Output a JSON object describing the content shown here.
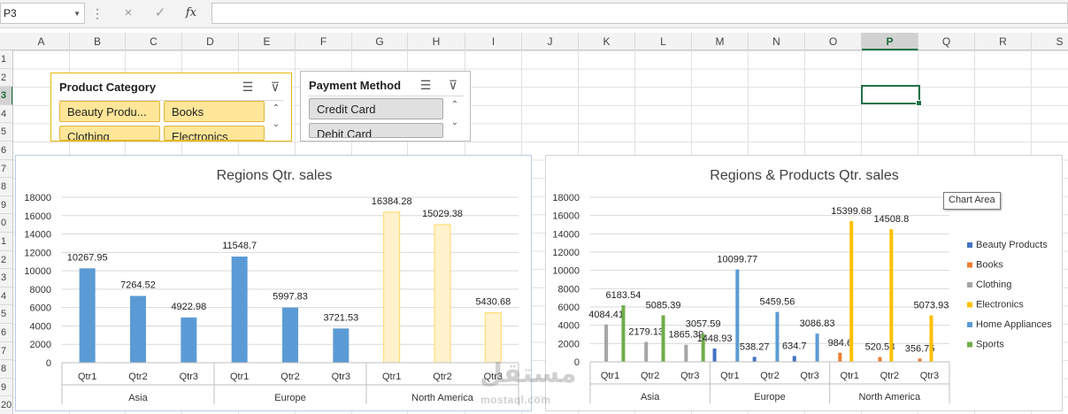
{
  "formula_bar": {
    "name_box": "P3",
    "cancel_icon": "×",
    "enter_icon": "✓",
    "fx_label": "fx"
  },
  "columns": [
    "A",
    "B",
    "C",
    "D",
    "E",
    "F",
    "G",
    "H",
    "I",
    "J",
    "K",
    "L",
    "M",
    "N",
    "O",
    "P",
    "Q",
    "R",
    "S"
  ],
  "selected_column": "P",
  "rows": [
    "1",
    "2",
    "3",
    "4",
    "5",
    "6",
    "7",
    "8",
    "9",
    "0",
    "1",
    "2",
    "3",
    "4",
    "5",
    "6",
    "7",
    "8",
    "9",
    "20"
  ],
  "selected_row_index": 2,
  "slicers": {
    "product_category": {
      "title": "Product Category",
      "items": [
        "Beauty Produ...",
        "Books",
        "Clothing",
        "Electronics"
      ]
    },
    "payment_method": {
      "title": "Payment Method",
      "items": [
        "Credit Card",
        "Debit Card"
      ]
    }
  },
  "tooltip": "Chart Area",
  "watermark": {
    "arabic": "مستقل",
    "latin": "mostaql.com"
  },
  "colors": {
    "accent_green": "#217346",
    "bar_blue": "#5b9bd5",
    "bar_pale": "#fff2cc",
    "bar_pale_border": "#ffd966",
    "beauty": "#4472c4",
    "books": "#ed7d31",
    "clothing": "#a5a5a5",
    "electronics": "#ffc000",
    "home": "#5b9bd5",
    "sports": "#70ad47"
  },
  "chart_data": [
    {
      "type": "bar",
      "title": "Regions Qtr. sales",
      "ylim": [
        0,
        18000
      ],
      "yticks": [
        0,
        2000,
        4000,
        6000,
        8000,
        10000,
        12000,
        14000,
        16000,
        18000
      ],
      "groups": [
        {
          "name": "Asia",
          "categories": [
            "Qtr1",
            "Qtr2",
            "Qtr3"
          ],
          "values": [
            10267.95,
            7264.52,
            4922.98
          ],
          "style": "blue"
        },
        {
          "name": "Europe",
          "categories": [
            "Qtr1",
            "Qtr2",
            "Qtr3"
          ],
          "values": [
            11548.7,
            5997.83,
            3721.53
          ],
          "style": "blue"
        },
        {
          "name": "North America",
          "categories": [
            "Qtr1",
            "Qtr2",
            "Qtr3"
          ],
          "values": [
            16384.28,
            15029.38,
            5430.68
          ],
          "style": "pale"
        }
      ],
      "grid": true,
      "legend": "none"
    },
    {
      "type": "bar",
      "title": "Regions & Products Qtr. sales",
      "ylim": [
        0,
        18000
      ],
      "yticks": [
        0,
        2000,
        4000,
        6000,
        8000,
        10000,
        12000,
        14000,
        16000,
        18000
      ],
      "legend_position": "right",
      "series_names": [
        "Beauty Products",
        "Books",
        "Clothing",
        "Electronics",
        "Home Appliances",
        "Sports"
      ],
      "groups": [
        {
          "name": "Asia",
          "categories": [
            "Qtr1",
            "Qtr2",
            "Qtr3"
          ],
          "values": {
            "Clothing": [
              4084.41,
              2179.13,
              1865.39
            ],
            "Sports": [
              6183.54,
              5085.39,
              3057.59
            ]
          }
        },
        {
          "name": "Europe",
          "categories": [
            "Qtr1",
            "Qtr2",
            "Qtr3"
          ],
          "values": {
            "Beauty Products": [
              1448.93,
              538.27,
              634.7
            ],
            "Home Appliances": [
              10099.77,
              5459.56,
              3086.83
            ]
          }
        },
        {
          "name": "North America",
          "categories": [
            "Qtr1",
            "Qtr2",
            "Qtr3"
          ],
          "values": {
            "Books": [
              984.6,
              520.58,
              356.75
            ],
            "Electronics": [
              15399.68,
              14508.8,
              5073.93
            ]
          }
        }
      ],
      "grid": true
    }
  ]
}
